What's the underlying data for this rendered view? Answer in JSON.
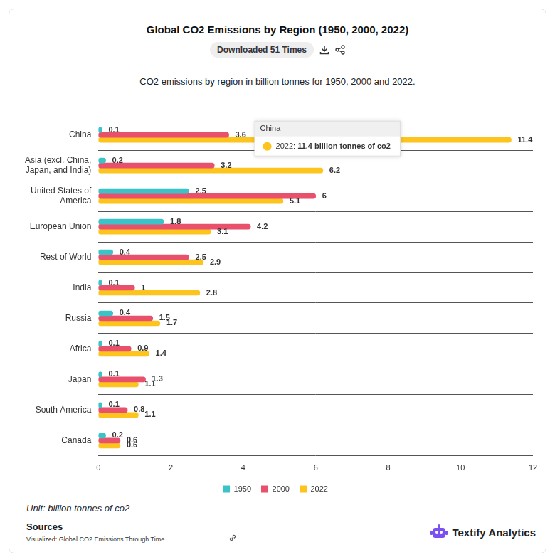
{
  "chart_data": {
    "type": "bar",
    "title": "Global CO2 Emissions by Region (1950, 2000, 2022)",
    "downloads_text": "Downloaded 51 Times",
    "subtitle": "CO2 emissions by region in billion tonnes for 1950, 2000 and 2022.",
    "orientation": "horizontal",
    "categories": [
      "China",
      "Asia (excl. China, Japan, and India)",
      "United States of America",
      "European Union",
      "Rest of World",
      "India",
      "Russia",
      "Africa",
      "Japan",
      "South America",
      "Canada"
    ],
    "series": [
      {
        "name": "1950",
        "color": "#3cc3c8",
        "values": [
          0.1,
          0.2,
          2.5,
          1.8,
          0.4,
          0.1,
          0.4,
          0.1,
          0.1,
          0.1,
          0.2
        ]
      },
      {
        "name": "2000",
        "color": "#e8506c",
        "values": [
          3.6,
          3.2,
          6,
          4.2,
          2.5,
          1,
          1.5,
          0.9,
          1.3,
          0.8,
          0.6
        ]
      },
      {
        "name": "2022",
        "color": "#fcc41c",
        "values": [
          11.4,
          6.2,
          5.1,
          3.1,
          2.9,
          2.8,
          1.7,
          1.4,
          1.1,
          1.1,
          0.6
        ]
      }
    ],
    "xlim": [
      0,
      12
    ],
    "xticks": [
      0,
      2,
      4,
      6,
      8,
      10,
      12
    ],
    "grid": true,
    "legend": "bottom",
    "data_labels": true,
    "annotations": [
      {
        "category": "China",
        "series": "2022",
        "title": "China",
        "text": "2022: 11.4 billion tonnes of co2"
      }
    ],
    "unit_note": "Unit: billion tonnes of co2",
    "sources_heading": "Sources",
    "source": "Visualized: Global CO2 Emissions Through Time...",
    "brand": "Textify Analytics"
  }
}
